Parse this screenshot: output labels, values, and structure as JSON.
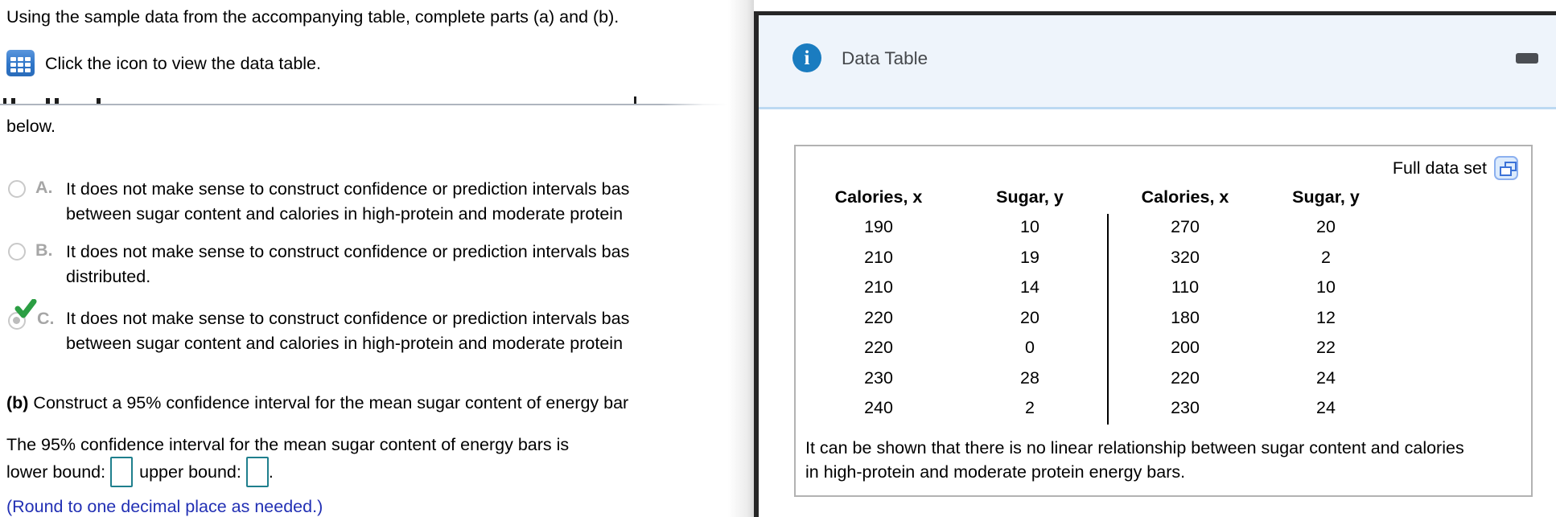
{
  "page": {
    "intro": "Using the sample data from the accompanying table, complete parts (a) and (b).",
    "icon_instruction": "Click the icon to view the data table.",
    "below_text": "below.",
    "options": [
      {
        "letter": "A.",
        "selected": false,
        "line1": "It does not make sense to construct confidence or prediction intervals bas",
        "line2": "between sugar content and calories in high-protein and moderate protein"
      },
      {
        "letter": "B.",
        "selected": false,
        "line1": "It does not make sense to construct confidence or prediction intervals bas",
        "line2": "distributed."
      },
      {
        "letter": "C.",
        "selected": true,
        "line1": "It does not make sense to construct confidence or prediction intervals bas",
        "line2": "between sugar content and calories in high-protein and moderate protein"
      }
    ],
    "part_b_label": "(b)",
    "part_b_text": " Construct a 95% confidence interval for the mean sugar content of energy bar",
    "ci_sentence": "The 95% confidence interval for the mean sugar content of energy bars is",
    "lower_bound_label": "lower bound:",
    "upper_bound_label": "upper bound:",
    "sentence_period": ".",
    "lower_bound_value": "",
    "upper_bound_value": "",
    "round_note": "(Round to one decimal place as needed.)"
  },
  "dialog": {
    "title": "Data Table",
    "info_icon_glyph": "i",
    "full_data_set_label": "Full data set",
    "table": {
      "headers": [
        "Calories, x",
        "Sugar, y",
        "Calories, x",
        "Sugar, y"
      ],
      "rows": [
        [
          "190",
          "10",
          "270",
          "20"
        ],
        [
          "210",
          "19",
          "320",
          "2"
        ],
        [
          "210",
          "14",
          "110",
          "10"
        ],
        [
          "220",
          "20",
          "180",
          "12"
        ],
        [
          "220",
          "0",
          "200",
          "22"
        ],
        [
          "230",
          "28",
          "220",
          "24"
        ],
        [
          "240",
          "2",
          "230",
          "24"
        ]
      ]
    },
    "note": "It can be shown that there is no linear relationship between sugar content and calories in high-protein and moderate protein energy bars."
  },
  "colors": {
    "accent_blue": "#1a7cc0",
    "check_green": "#2b9e43",
    "input_border_teal": "#1f7f8d",
    "note_blue": "#2230b4",
    "dialog_header_bg": "#eef4fb",
    "dialog_header_border": "#bcd9f2",
    "dialog_border": "#262626",
    "panel_border": "#b2b2b2",
    "table_icon_blue": "#2e75c8",
    "full_data_icon_blue": "#3b72d8"
  }
}
